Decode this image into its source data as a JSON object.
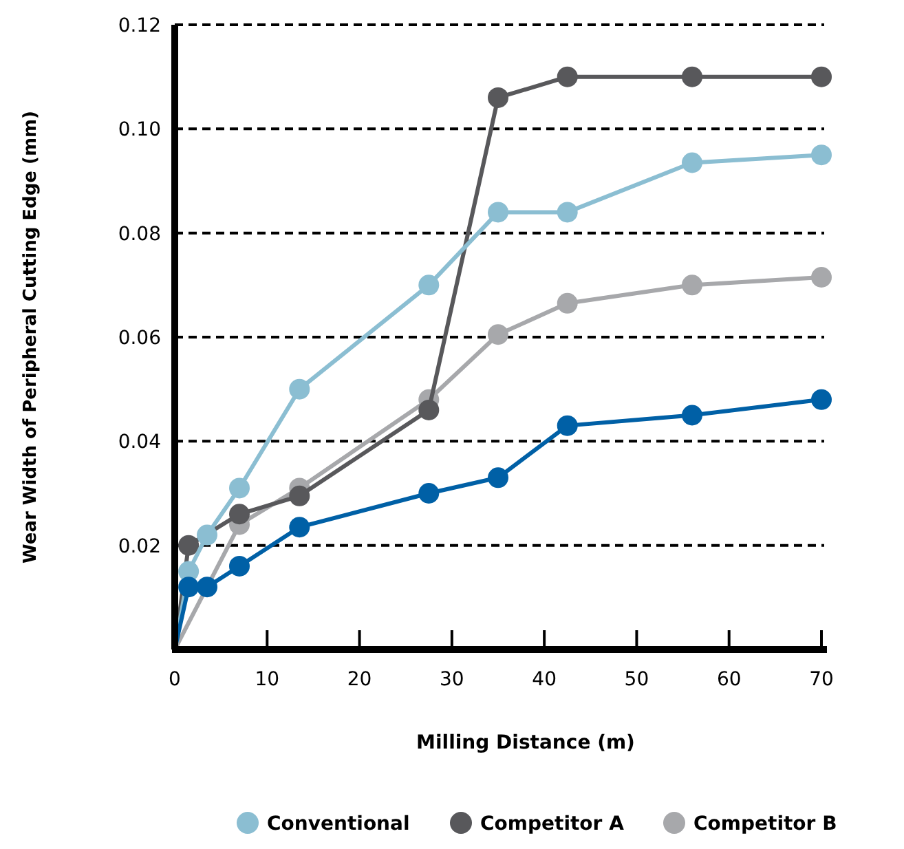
{
  "chart_data": {
    "type": "line",
    "xlabel": "Milling Distance (m)",
    "ylabel": "Wear Width of Peripheral Cutting Edge (mm)",
    "xlim": [
      0,
      70
    ],
    "xticks": [
      0,
      10,
      20,
      30,
      40,
      50,
      60,
      70
    ],
    "ylim": [
      0,
      0.12
    ],
    "yticks": [
      0.02,
      0.04,
      0.06,
      0.08,
      {
        "value": 0.1,
        "label": "0.10"
      },
      0.12
    ],
    "grid": "y",
    "legend": "bottom",
    "marker": "circle",
    "line_style": "solid",
    "series": [
      {
        "color": "#0060a6",
        "x": [
          0,
          1.5,
          3.5,
          7,
          13.5,
          27.5,
          35,
          42.5,
          56,
          70
        ],
        "values": [
          0,
          0.012,
          0.012,
          0.016,
          0.0235,
          0.03,
          0.033,
          0.043,
          0.045,
          0.048
        ]
      },
      {
        "name": "Conventional",
        "color": "#8bbed2",
        "x": [
          0,
          1.5,
          3.5,
          7,
          13.5,
          27.5,
          35,
          42.5,
          56,
          70
        ],
        "values": [
          0,
          0.015,
          0.022,
          0.031,
          0.05,
          0.07,
          0.084,
          0.084,
          0.0935,
          0.095
        ]
      },
      {
        "name": "Competitor A",
        "color": "#58585b",
        "x": [
          0,
          1.5,
          7,
          13.5,
          27.5,
          35,
          42.5,
          56,
          70
        ],
        "values": [
          0,
          0.02,
          0.026,
          0.0295,
          0.046,
          0.106,
          0.11,
          0.11,
          0.11
        ]
      },
      {
        "name": "Competitor B",
        "color": "#a7a8ab",
        "x": [
          0,
          1.5,
          3.5,
          7,
          13.5,
          27.5,
          35,
          42.5,
          56,
          70
        ],
        "values": [
          0,
          null,
          null,
          0.024,
          0.031,
          0.048,
          0.0605,
          0.0665,
          0.07,
          0.0715
        ]
      }
    ]
  }
}
